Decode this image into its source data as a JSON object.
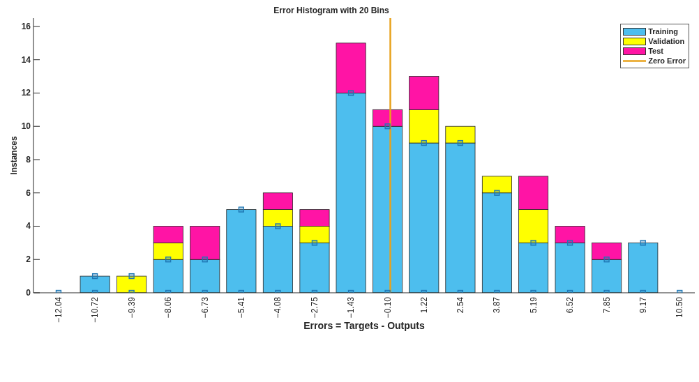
{
  "chart_data": {
    "type": "bar",
    "title": "Error Histogram with 20 Bins",
    "xlabel": "Errors = Targets - Outputs",
    "ylabel": "Instances",
    "x": [
      -12.04,
      -10.72,
      -9.39,
      -8.06,
      -6.73,
      -5.41,
      -4.08,
      -2.75,
      -1.43,
      -0.1,
      1.22,
      2.54,
      3.87,
      5.19,
      6.52,
      7.85,
      9.17,
      10.5
    ],
    "xlim": [
      -12.95,
      11.05
    ],
    "xticks": [
      {
        "value": -12.04,
        "label": "−12.04"
      },
      {
        "value": -10.72,
        "label": "−10.72"
      },
      {
        "value": -9.39,
        "label": "−9.39"
      },
      {
        "value": -8.06,
        "label": "−8.06"
      },
      {
        "value": -6.73,
        "label": "−6.73"
      },
      {
        "value": -5.41,
        "label": "−5.41"
      },
      {
        "value": -4.08,
        "label": "−4.08"
      },
      {
        "value": -2.75,
        "label": "−2.75"
      },
      {
        "value": -1.43,
        "label": "−1.43"
      },
      {
        "value": -0.1,
        "label": "−0.10"
      },
      1.22,
      2.54,
      3.87,
      5.19,
      6.52,
      7.85,
      9.17,
      {
        "value": 10.5,
        "label": "10.50"
      }
    ],
    "ylim": [
      0,
      16.5
    ],
    "yticks": [
      0,
      2,
      4,
      6,
      8,
      10,
      12,
      14,
      16
    ],
    "stacked": true,
    "series": [
      {
        "name": "Training",
        "color": "#4dbeee",
        "values": [
          0,
          1,
          0,
          2,
          2,
          5,
          4,
          3,
          12,
          10,
          9,
          9,
          6,
          3,
          3,
          2,
          3,
          0
        ]
      },
      {
        "name": "Validation",
        "color": "#ffff00",
        "values": [
          0,
          0,
          1,
          1,
          0,
          0,
          1,
          1,
          0,
          0,
          2,
          1,
          1,
          2,
          0,
          0,
          0,
          0
        ]
      },
      {
        "name": "Test",
        "color": "#ff14a5",
        "values": [
          0,
          0,
          0,
          1,
          2,
          0,
          1,
          1,
          3,
          1,
          2,
          0,
          0,
          2,
          1,
          1,
          0,
          0
        ]
      },
      {
        "name": "Zero Error",
        "type": "line",
        "color": "#e8a21c",
        "x": [
          0,
          0
        ],
        "values": [
          0,
          16.5
        ]
      },
      {
        "type": "scatter",
        "color": "#1f77b4",
        "marker": "square",
        "values": [
          0,
          0,
          0,
          0,
          0,
          0,
          0,
          0,
          0,
          0,
          0,
          0,
          0,
          0,
          0,
          0,
          0,
          0
        ]
      },
      {
        "type": "scatter",
        "color": "#1f77b4",
        "marker": "square",
        "values": [
          null,
          1,
          1,
          2,
          2,
          5,
          4,
          3,
          12,
          10,
          9,
          9,
          6,
          3,
          3,
          2,
          3,
          null
        ]
      }
    ],
    "legend": "top right"
  }
}
